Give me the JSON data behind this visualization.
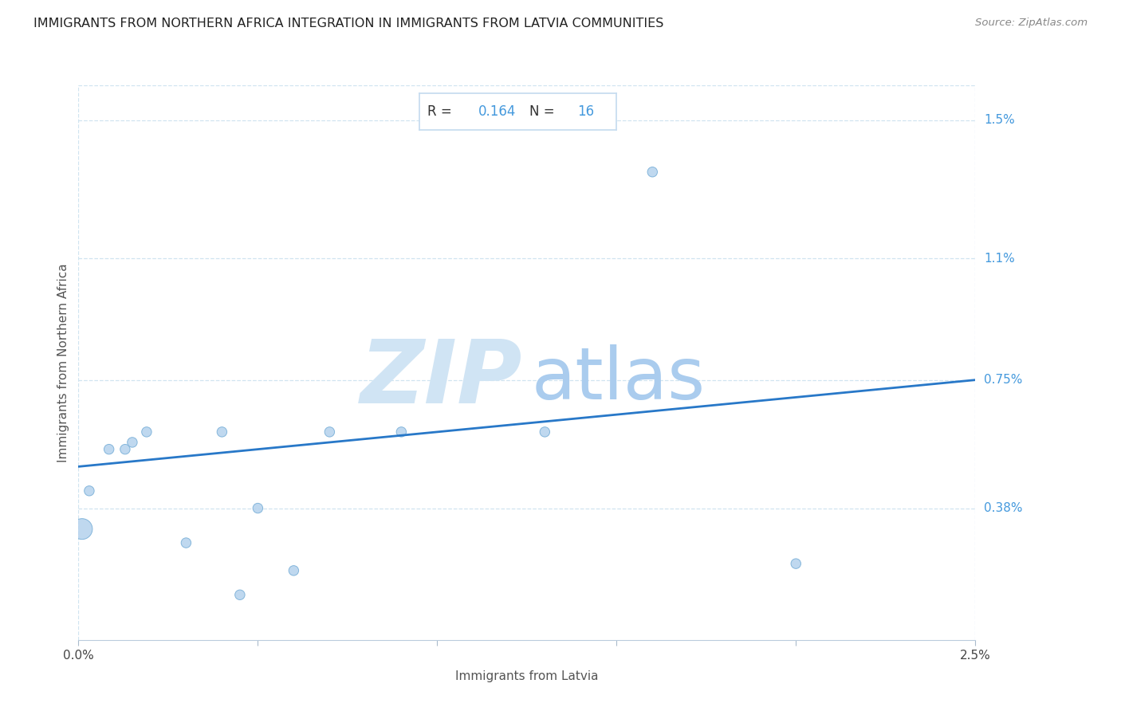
{
  "title": "IMMIGRANTS FROM NORTHERN AFRICA INTEGRATION IN IMMIGRANTS FROM LATVIA COMMUNITIES",
  "source": "Source: ZipAtlas.com",
  "xlabel": "Immigrants from Latvia",
  "ylabel": "Immigrants from Northern Africa",
  "xlim": [
    0.0,
    0.025
  ],
  "ylim": [
    0.0,
    0.016
  ],
  "ytick_positions": [
    0.0038,
    0.0075,
    0.011,
    0.015
  ],
  "ytick_labels": [
    "0.38%",
    "0.75%",
    "1.1%",
    "1.5%"
  ],
  "R": "0.164",
  "N": "16",
  "scatter_x": [
    0.0003,
    0.00085,
    0.0013,
    0.0015,
    0.0019,
    0.004,
    0.005,
    0.007,
    0.009,
    0.013,
    0.016,
    0.003,
    0.0045,
    0.006,
    0.02,
    0.0001
  ],
  "scatter_y": [
    0.0043,
    0.0055,
    0.0055,
    0.0057,
    0.006,
    0.006,
    0.0038,
    0.006,
    0.006,
    0.006,
    0.0135,
    0.0028,
    0.0013,
    0.002,
    0.0022,
    0.0032
  ],
  "scatter_sizes": [
    80,
    80,
    80,
    80,
    80,
    80,
    80,
    80,
    80,
    80,
    80,
    80,
    80,
    80,
    80,
    350
  ],
  "scatter_color": "#b8d4ee",
  "scatter_edgecolor": "#7ab0d8",
  "line_color": "#2878c8",
  "line_x0": 0.0,
  "line_y0": 0.005,
  "line_x1": 0.025,
  "line_y1": 0.0075,
  "grid_color": "#d0e4f0",
  "background_color": "#ffffff",
  "title_fontsize": 11.5,
  "source_fontsize": 9.5,
  "axis_label_fontsize": 11,
  "tick_fontsize": 11,
  "ytick_color": "#4499dd",
  "xtick_color": "#444444",
  "watermark_ZIP_color": "#d0e4f4",
  "watermark_atlas_color": "#aaccee",
  "annotation_box_color": "#c8ddf0"
}
